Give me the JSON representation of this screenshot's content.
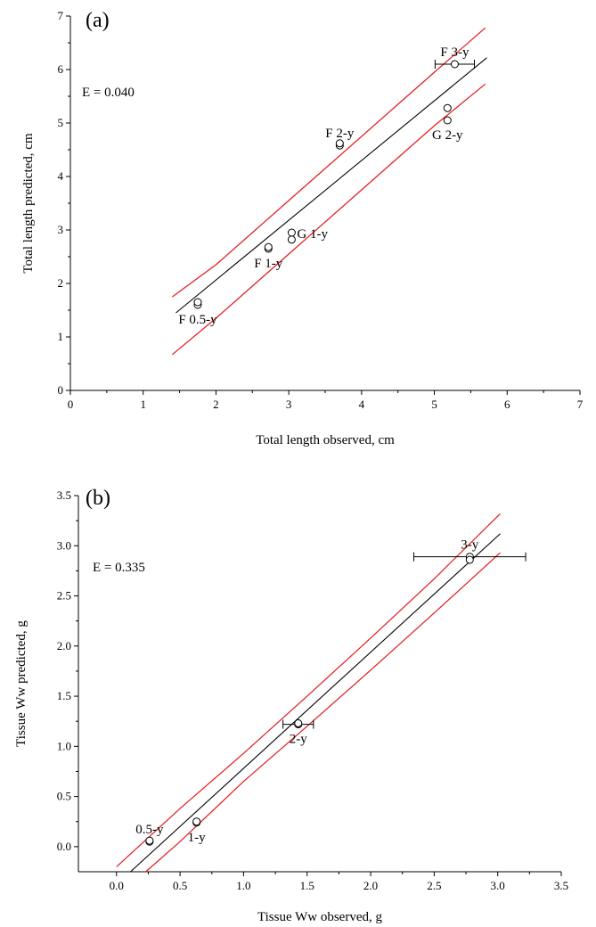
{
  "chart_data": [
    {
      "type": "scatter",
      "panel_label": "(a)",
      "stat_text": "E = 0.040",
      "xlabel": "Total length observed, cm",
      "ylabel": "Total length predicted, cm",
      "xlim": [
        0,
        7
      ],
      "ylim": [
        0,
        7
      ],
      "xticks": [
        "0",
        "1",
        "2",
        "3",
        "4",
        "5",
        "6",
        "7"
      ],
      "yticks": [
        "0",
        "1",
        "2",
        "3",
        "4",
        "5",
        "6",
        "7"
      ],
      "points": [
        {
          "x": 1.75,
          "y": 1.6,
          "label": "F 0.5-y",
          "anchor": "below",
          "xerr": 0
        },
        {
          "x": 1.75,
          "y": 1.65,
          "label": "",
          "anchor": "none",
          "xerr": 0
        },
        {
          "x": 2.72,
          "y": 2.65,
          "label": "F 1-y",
          "anchor": "below",
          "xerr": 0
        },
        {
          "x": 2.72,
          "y": 2.68,
          "label": "",
          "anchor": "none",
          "xerr": 0
        },
        {
          "x": 3.04,
          "y": 2.95,
          "label": "G 1-y",
          "anchor": "right",
          "xerr": 0
        },
        {
          "x": 3.04,
          "y": 2.82,
          "label": "",
          "anchor": "none",
          "xerr": 0
        },
        {
          "x": 3.7,
          "y": 4.58,
          "label": "F 2-y",
          "anchor": "above",
          "xerr": 0
        },
        {
          "x": 3.7,
          "y": 4.62,
          "label": "",
          "anchor": "none",
          "xerr": 0
        },
        {
          "x": 5.18,
          "y": 5.28,
          "label": "",
          "anchor": "none",
          "xerr": 0
        },
        {
          "x": 5.18,
          "y": 5.05,
          "label": "G 2-y",
          "anchor": "below",
          "xerr": 0
        },
        {
          "x": 5.28,
          "y": 6.1,
          "label": "F 3-y",
          "anchor": "above",
          "xerr": 0.27
        }
      ],
      "fit_line": {
        "x": [
          1.45,
          5.72
        ],
        "y": [
          1.45,
          6.22
        ]
      },
      "upper_band": {
        "x": [
          1.4,
          2.0,
          2.5,
          3.0,
          3.5,
          4.0,
          4.5,
          5.0,
          5.7
        ],
        "y": [
          1.75,
          2.35,
          2.95,
          3.55,
          4.15,
          4.75,
          5.35,
          5.95,
          6.78
        ]
      },
      "lower_band": {
        "x": [
          1.4,
          2.0,
          2.5,
          3.0,
          3.5,
          4.0,
          4.5,
          5.0,
          5.7
        ],
        "y": [
          0.67,
          1.35,
          1.95,
          2.55,
          3.15,
          3.75,
          4.35,
          4.95,
          5.73
        ]
      },
      "line_color": "#000000",
      "band_color": "#e31a1c"
    },
    {
      "type": "scatter",
      "panel_label": "(b)",
      "stat_text": "E = 0.335",
      "xlabel": "Tissue Ww observed, g",
      "ylabel": "Tissue Ww predicted, g",
      "xlim": [
        -0.3,
        3.5
      ],
      "ylim": [
        -0.25,
        3.5
      ],
      "xticks": [
        "0.0",
        "0.5",
        "1.0",
        "1.5",
        "2.0",
        "2.5",
        "3.0",
        "3.5"
      ],
      "yticks": [
        "0.0",
        "0.5",
        "1.0",
        "1.5",
        "2.0",
        "2.5",
        "3.0",
        "3.5"
      ],
      "points": [
        {
          "x": 0.26,
          "y": 0.05,
          "label": "0.5-y",
          "anchor": "above",
          "xerr": 0
        },
        {
          "x": 0.26,
          "y": 0.06,
          "label": "",
          "anchor": "none",
          "xerr": 0
        },
        {
          "x": 0.63,
          "y": 0.24,
          "label": "1-y",
          "anchor": "below",
          "xerr": 0
        },
        {
          "x": 0.63,
          "y": 0.25,
          "label": "",
          "anchor": "none",
          "xerr": 0
        },
        {
          "x": 1.43,
          "y": 1.22,
          "label": "2-y",
          "anchor": "below",
          "xerr": 0.12
        },
        {
          "x": 1.43,
          "y": 1.23,
          "label": "",
          "anchor": "none",
          "xerr": 0
        },
        {
          "x": 2.78,
          "y": 2.89,
          "label": "3-y",
          "anchor": "above",
          "xerr": 0.44
        },
        {
          "x": 2.78,
          "y": 2.86,
          "label": "",
          "anchor": "none",
          "xerr": 0
        }
      ],
      "fit_line": {
        "x": [
          0.11,
          3.02
        ],
        "y": [
          -0.25,
          3.12
        ]
      },
      "upper_band": {
        "x": [
          0.0,
          0.5,
          1.0,
          1.5,
          2.0,
          2.5,
          3.02
        ],
        "y": [
          -0.2,
          0.38,
          0.93,
          1.5,
          2.08,
          2.67,
          3.32
        ]
      },
      "lower_band": {
        "x": [
          0.23,
          0.5,
          1.0,
          1.5,
          2.0,
          2.5,
          3.02
        ],
        "y": [
          -0.25,
          0.05,
          0.65,
          1.2,
          1.76,
          2.33,
          2.93
        ]
      },
      "line_color": "#000000",
      "band_color": "#e31a1c"
    }
  ]
}
